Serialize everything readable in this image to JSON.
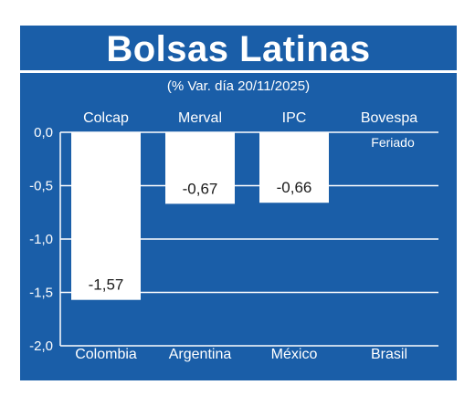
{
  "header": {
    "title": "Bolsas Latinas",
    "subtitle": "(% Var. día 20/11/2025)"
  },
  "colors": {
    "background": "#1a5ea8",
    "bar": "#ffffff",
    "grid": "#ffffff"
  },
  "chart_data": {
    "type": "bar",
    "title": "Bolsas Latinas",
    "subtitle": "(% Var. día 20/11/2025)",
    "index_labels": [
      "Colcap",
      "Merval",
      "IPC",
      "Bovespa"
    ],
    "categories": [
      "Colombia",
      "Argentina",
      "México",
      "Brasil"
    ],
    "values": [
      -1.57,
      -0.67,
      -0.66,
      null
    ],
    "value_labels": [
      "-1,57",
      "-0,67",
      "-0,66",
      ""
    ],
    "notes": [
      "",
      "",
      "",
      "Feriado"
    ],
    "yticks": [
      "0,0",
      "-0,5",
      "-1,0",
      "-1,5",
      "-2,0"
    ],
    "ylim": [
      -2.0,
      0.0
    ],
    "grid": true
  }
}
